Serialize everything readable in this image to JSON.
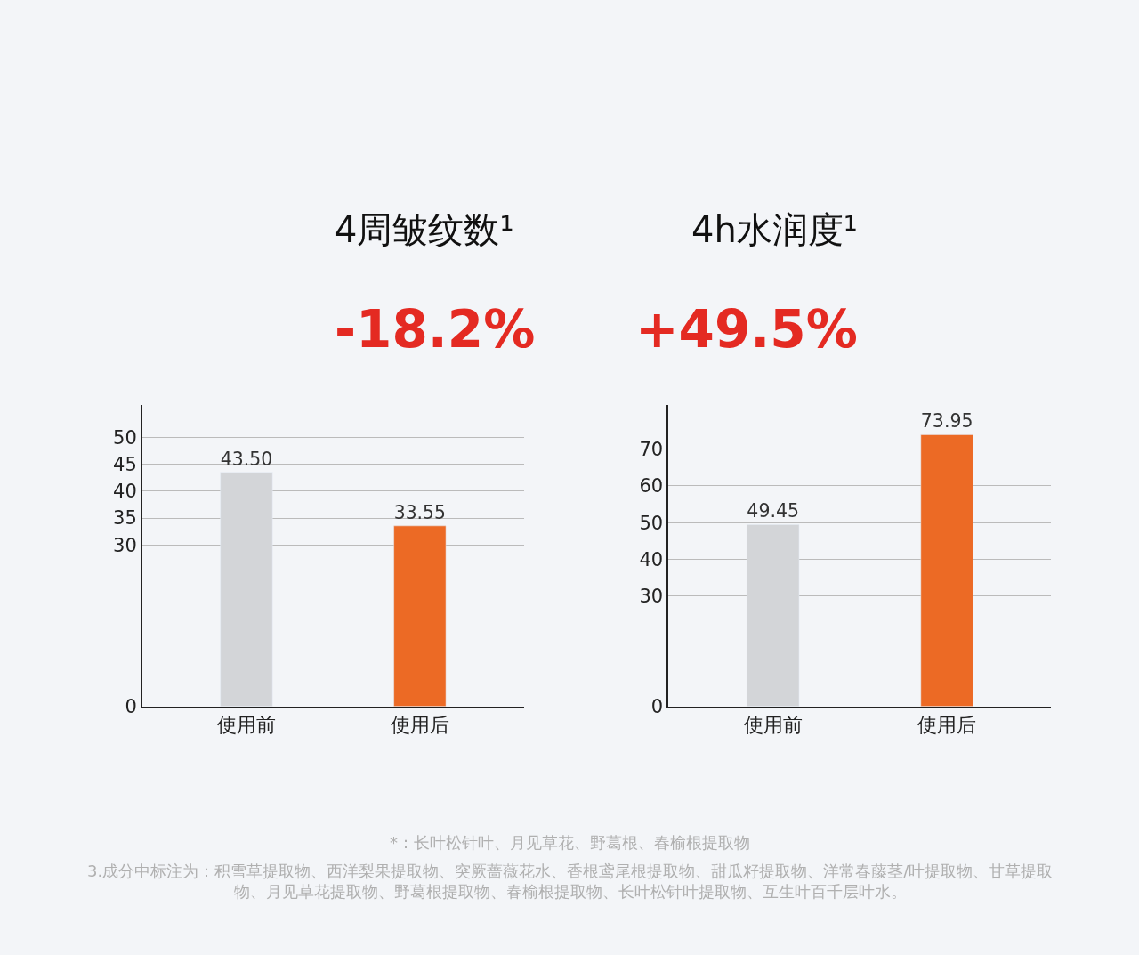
{
  "chart_data": [
    {
      "type": "bar",
      "title": "4周皱纹数¹",
      "subtitle": "-18.2%",
      "categories": [
        "使用前",
        "使用后"
      ],
      "values": [
        43.5,
        33.55
      ],
      "colors": [
        "#d3d5d8",
        "#ec6a25"
      ],
      "value_labels": [
        "43.50",
        "33.55"
      ],
      "ylim": [
        0,
        56
      ],
      "yticks": [
        0,
        30,
        35,
        40,
        45,
        50
      ],
      "grid": "y",
      "annotations": [
        "*：长叶松针叶、月见草花、野葛根、春榆根提取物",
        "3.成分中标注为：积雪草提取物、西洋梨果提取物、突厥蔷薇花水、香根鸢尾根提取物、甜瓜籽提取物、洋常春藤茎/叶提取物、甘草提取物、月见草花提取物、野葛根提取物、春榆根提取物、长叶松针叶提取物、互生叶百千层叶水。"
      ]
    },
    {
      "type": "bar",
      "title": "4h水润度¹",
      "subtitle": "+49.5%",
      "categories": [
        "使用前",
        "使用后"
      ],
      "values": [
        49.45,
        73.95
      ],
      "colors": [
        "#d3d5d8",
        "#ec6a25"
      ],
      "value_labels": [
        "49.45",
        "73.95"
      ],
      "ylim": [
        0,
        82
      ],
      "yticks": [
        0,
        30,
        40,
        50,
        60,
        70
      ],
      "grid": "y"
    }
  ]
}
